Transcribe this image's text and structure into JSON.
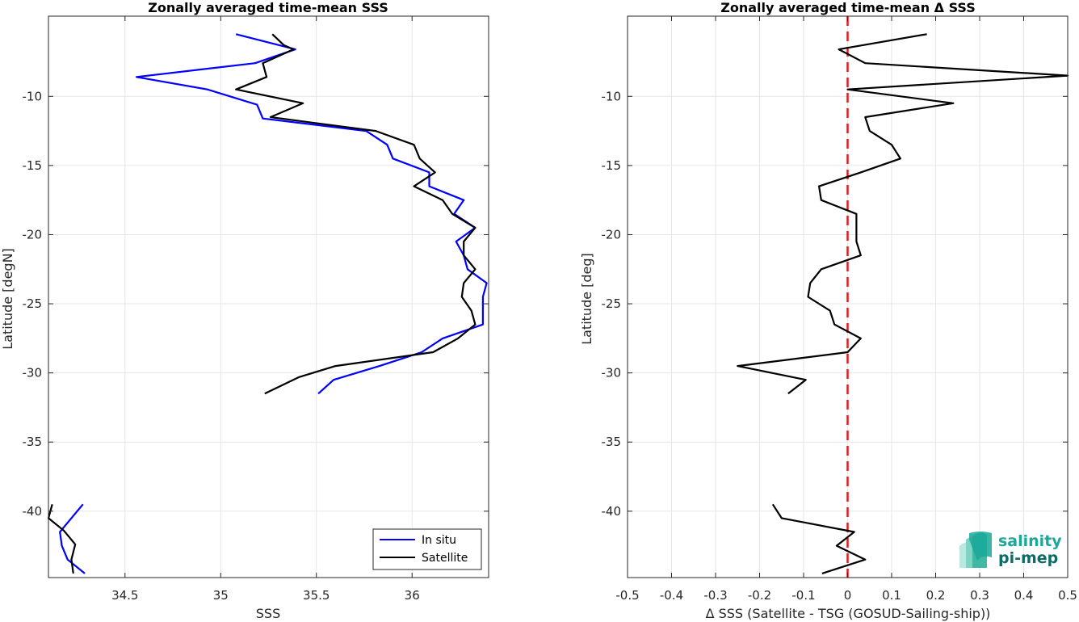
{
  "chart_data": [
    {
      "type": "line",
      "title": "Zonally averaged time-mean SSS",
      "xlabel": "SSS",
      "ylabel": "Latitude [degN]",
      "xlim": [
        34.1,
        36.4
      ],
      "ylim": [
        -44.8,
        -4.2
      ],
      "xticks": [
        34.5,
        35,
        35.5,
        36
      ],
      "xtick_labels": [
        "34.5",
        "35",
        "35.5",
        "36"
      ],
      "yticks": [
        -40,
        -35,
        -30,
        -25,
        -20,
        -15,
        -10
      ],
      "ytick_labels": [
        "-40",
        "-35",
        "-30",
        "-25",
        "-20",
        "-15",
        "-10"
      ],
      "grid": true,
      "legend": "bottom-right",
      "series": [
        {
          "name": "In situ",
          "color": "#0000ff",
          "segments": [
            [
              [
                35.08,
                -5.5
              ],
              [
                35.39,
                -6.6
              ],
              [
                35.18,
                -7.6
              ],
              [
                34.56,
                -8.6
              ],
              [
                34.93,
                -9.5
              ],
              [
                35.19,
                -10.6
              ],
              [
                35.22,
                -11.6
              ],
              [
                35.76,
                -12.5
              ],
              [
                35.87,
                -13.5
              ],
              [
                35.9,
                -14.5
              ],
              [
                36.09,
                -15.5
              ],
              [
                36.09,
                -16.5
              ],
              [
                36.27,
                -17.5
              ],
              [
                36.22,
                -18.5
              ],
              [
                36.33,
                -19.5
              ],
              [
                36.23,
                -20.5
              ],
              [
                36.27,
                -21.5
              ],
              [
                36.29,
                -22.5
              ],
              [
                36.39,
                -23.5
              ],
              [
                36.37,
                -24.5
              ],
              [
                36.37,
                -25.5
              ],
              [
                36.37,
                -26.5
              ],
              [
                36.16,
                -27.5
              ],
              [
                36.05,
                -28.5
              ],
              [
                35.83,
                -29.5
              ],
              [
                35.59,
                -30.5
              ],
              [
                35.51,
                -31.5
              ]
            ],
            [
              [
                34.28,
                -39.5
              ],
              [
                34.22,
                -40.5
              ],
              [
                34.16,
                -41.5
              ],
              [
                34.17,
                -42.5
              ],
              [
                34.2,
                -43.5
              ],
              [
                34.29,
                -44.5
              ]
            ]
          ]
        },
        {
          "name": "Satellite",
          "color": "#000000",
          "segments": [
            [
              [
                35.27,
                -5.5
              ],
              [
                35.33,
                -6.3
              ],
              [
                35.38,
                -6.6
              ],
              [
                35.22,
                -7.6
              ],
              [
                35.24,
                -8.6
              ],
              [
                35.08,
                -9.5
              ],
              [
                35.43,
                -10.5
              ],
              [
                35.26,
                -11.5
              ],
              [
                35.81,
                -12.5
              ],
              [
                36.01,
                -13.5
              ],
              [
                36.04,
                -14.5
              ],
              [
                36.12,
                -15.5
              ],
              [
                36.01,
                -16.5
              ],
              [
                36.16,
                -17.5
              ],
              [
                36.21,
                -18.5
              ],
              [
                36.33,
                -19.5
              ],
              [
                36.27,
                -20.5
              ],
              [
                36.27,
                -21.5
              ],
              [
                36.33,
                -22.5
              ],
              [
                36.27,
                -23.5
              ],
              [
                36.26,
                -24.5
              ],
              [
                36.31,
                -25.5
              ],
              [
                36.33,
                -26.5
              ],
              [
                36.24,
                -27.5
              ],
              [
                36.11,
                -28.5
              ],
              [
                35.6,
                -29.5
              ],
              [
                35.41,
                -30.3
              ],
              [
                35.23,
                -31.5
              ]
            ],
            [
              [
                34.12,
                -39.5
              ],
              [
                34.1,
                -40.5
              ],
              [
                34.18,
                -41.4
              ],
              [
                34.24,
                -42.4
              ],
              [
                34.22,
                -43.5
              ],
              [
                34.23,
                -44.5
              ]
            ]
          ]
        }
      ]
    },
    {
      "type": "line",
      "title": "Zonally averaged time-mean Δ SSS",
      "xlabel": "Δ SSS (Satellite - TSG (GOSUD-Sailing-ship))",
      "ylabel": "Latitude [deg]",
      "xlim": [
        -0.5,
        0.5
      ],
      "ylim": [
        -44.8,
        -4.2
      ],
      "xticks": [
        -0.5,
        -0.4,
        -0.3,
        -0.2,
        -0.1,
        0,
        0.1,
        0.2,
        0.3,
        0.4,
        0.5
      ],
      "xtick_labels": [
        "-0.5",
        "-0.4",
        "-0.3",
        "-0.2",
        "-0.1",
        "0",
        "0.1",
        "0.2",
        "0.3",
        "0.4",
        "0.5"
      ],
      "yticks": [
        -40,
        -35,
        -30,
        -25,
        -20,
        -15,
        -10
      ],
      "ytick_labels": [
        "-40",
        "-35",
        "-30",
        "-25",
        "-20",
        "-15",
        "-10"
      ],
      "grid": true,
      "reference_line": {
        "x": 0,
        "color": "#e41a1c",
        "style": "dashed"
      },
      "series": [
        {
          "color": "#000000",
          "segments": [
            [
              [
                0.18,
                -5.5
              ],
              [
                -0.02,
                -6.6
              ],
              [
                0.04,
                -7.6
              ],
              [
                0.5,
                -8.5
              ],
              [
                0.0,
                -9.5
              ],
              [
                0.24,
                -10.5
              ],
              [
                0.04,
                -11.5
              ],
              [
                0.05,
                -12.5
              ],
              [
                0.1,
                -13.5
              ],
              [
                0.12,
                -14.5
              ],
              [
                0.03,
                -15.5
              ],
              [
                -0.065,
                -16.5
              ],
              [
                -0.06,
                -17.5
              ],
              [
                0.02,
                -18.5
              ],
              [
                0.02,
                -19.5
              ],
              [
                0.02,
                -20.5
              ],
              [
                0.03,
                -21.5
              ],
              [
                -0.06,
                -22.5
              ],
              [
                -0.085,
                -23.5
              ],
              [
                -0.09,
                -24.5
              ],
              [
                -0.04,
                -25.5
              ],
              [
                -0.03,
                -26.5
              ],
              [
                0.03,
                -27.5
              ],
              [
                0.0,
                -28.5
              ],
              [
                -0.25,
                -29.5
              ],
              [
                -0.095,
                -30.5
              ],
              [
                -0.135,
                -31.5
              ]
            ],
            [
              [
                -0.17,
                -39.5
              ],
              [
                -0.15,
                -40.5
              ],
              [
                0.015,
                -41.5
              ],
              [
                -0.025,
                -42.5
              ],
              [
                0.04,
                -43.5
              ],
              [
                -0.058,
                -44.5
              ]
            ]
          ]
        }
      ]
    }
  ],
  "logo": {
    "line1": "salinity",
    "line2": "pi-mep",
    "color1": "#1aa89a",
    "color2": "#0d6b66"
  }
}
